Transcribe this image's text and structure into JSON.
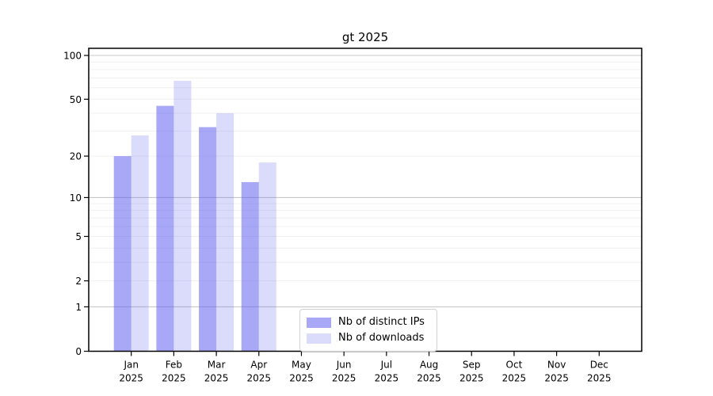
{
  "figure": {
    "background": "#ffffff",
    "axis_color": "#000000"
  },
  "chart_data": {
    "type": "bar",
    "title": "gt 2025",
    "categories": [
      "Jan",
      "Feb",
      "Mar",
      "Apr",
      "May",
      "Jun",
      "Jul",
      "Aug",
      "Sep",
      "Oct",
      "Nov",
      "Dec"
    ],
    "x_year_label": "2025",
    "series": [
      {
        "name": "Nb of distinct IPs",
        "color": "#5555f0",
        "alpha": 0.51,
        "values": [
          20,
          45,
          32,
          13,
          0,
          0,
          0,
          0,
          0,
          0,
          0,
          0
        ]
      },
      {
        "name": "Nb of downloads",
        "color": "#5555f0",
        "alpha": 0.21,
        "values": [
          28,
          67,
          40,
          18,
          0,
          0,
          0,
          0,
          0,
          0,
          0,
          0
        ]
      }
    ],
    "xlabel": "",
    "ylabel": "",
    "yscale": "log1p",
    "yticks": [
      0,
      1,
      2,
      5,
      10,
      20,
      50,
      100
    ],
    "ylim": [
      0,
      112
    ],
    "grid": {
      "major": [
        1,
        10,
        100
      ],
      "minor": [
        2,
        3,
        4,
        5,
        6,
        7,
        8,
        9,
        20,
        30,
        40,
        50,
        60,
        70,
        80,
        90
      ],
      "major_color": "#c9c9c9",
      "minor_color": "#f0f0f0"
    },
    "legend_position": "lower center"
  }
}
